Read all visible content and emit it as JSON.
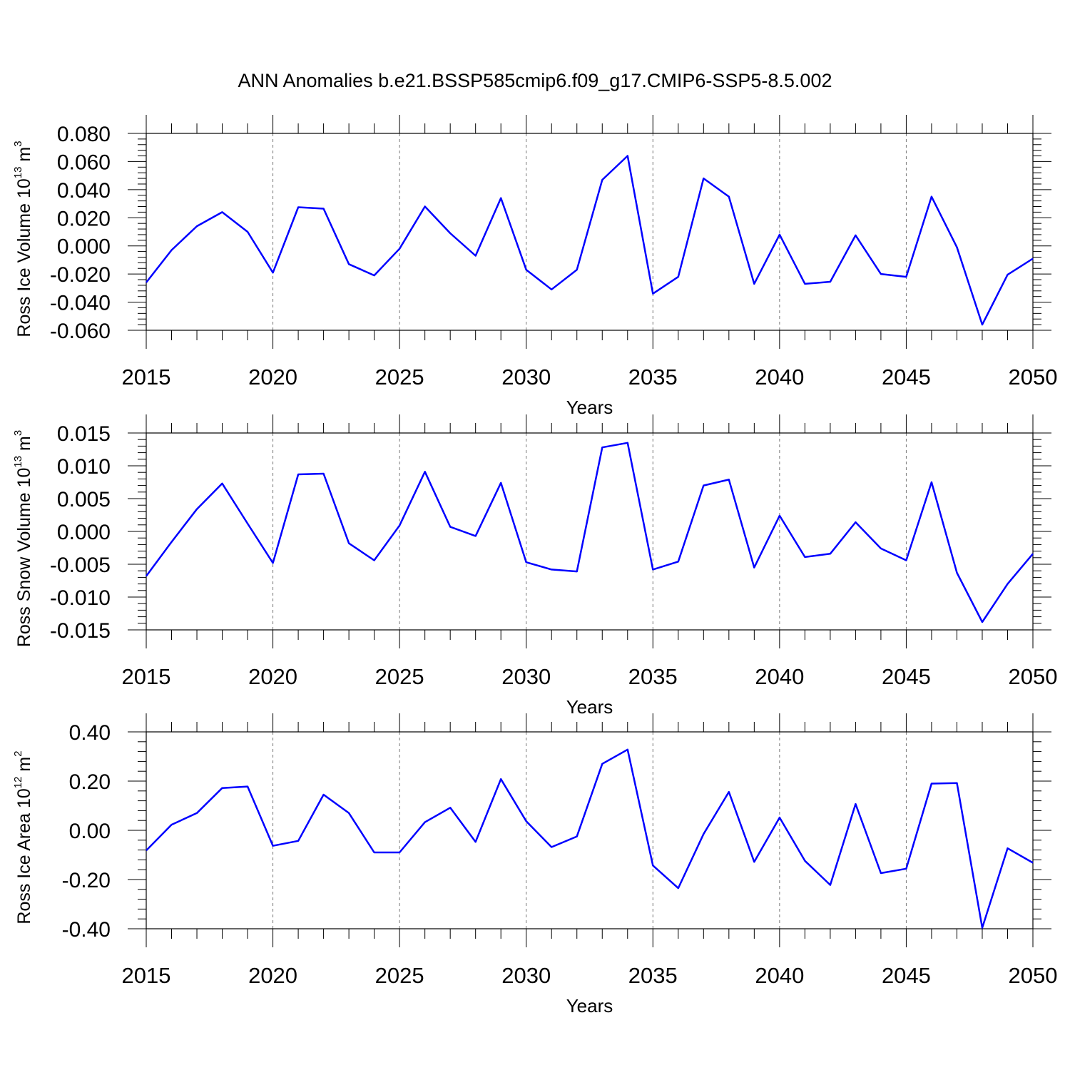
{
  "title": "ANN Anomalies b.e21.BSSP585cmip6.f09_g17.CMIP6-SSP5-8.5.002",
  "line_color": "#0000ff",
  "chart_data": [
    {
      "type": "line",
      "title": "",
      "xlabel": "Years",
      "ylabel": "Ross Ice Volume 10",
      "ylabel_exp": "13",
      "ylabel_unit": " m",
      "ylabel_unit_exp": "3",
      "xlim": [
        2015,
        2050
      ],
      "ylim": [
        -0.06,
        0.08
      ],
      "xticks": [
        2015,
        2020,
        2025,
        2030,
        2035,
        2040,
        2045,
        2050
      ],
      "xtick_labels": [
        "2015",
        "2020",
        "2025",
        "2030",
        "2035",
        "2040",
        "2045",
        "2050"
      ],
      "yticks": [
        -0.06,
        -0.04,
        -0.02,
        0.0,
        0.02,
        0.04,
        0.06,
        0.08
      ],
      "ytick_labels": [
        "-0.060",
        "-0.040",
        "-0.020",
        "0.000",
        "0.020",
        "0.040",
        "0.060",
        "0.080"
      ],
      "grid": "vertical dashed at major x ticks",
      "x": [
        2015,
        2016,
        2017,
        2018,
        2019,
        2020,
        2021,
        2022,
        2023,
        2024,
        2025,
        2026,
        2027,
        2028,
        2029,
        2030,
        2031,
        2032,
        2033,
        2034,
        2035,
        2036,
        2037,
        2038,
        2039,
        2040,
        2041,
        2042,
        2043,
        2044,
        2045,
        2046,
        2047,
        2048,
        2049,
        2050
      ],
      "y": [
        -0.026,
        -0.003,
        0.014,
        0.024,
        0.01,
        -0.019,
        0.0275,
        0.0265,
        -0.013,
        -0.021,
        -0.002,
        0.028,
        0.009,
        -0.007,
        0.034,
        -0.017,
        -0.031,
        -0.017,
        0.047,
        0.064,
        -0.034,
        -0.022,
        0.048,
        0.035,
        -0.027,
        0.008,
        -0.027,
        -0.0255,
        0.0075,
        -0.02,
        -0.022,
        0.035,
        -0.001,
        -0.056,
        -0.0205,
        -0.009
      ]
    },
    {
      "type": "line",
      "title": "",
      "xlabel": "Years",
      "ylabel": "Ross Snow Volume 10",
      "ylabel_exp": "13",
      "ylabel_unit": " m",
      "ylabel_unit_exp": "3",
      "xlim": [
        2015,
        2050
      ],
      "ylim": [
        -0.015,
        0.015
      ],
      "xticks": [
        2015,
        2020,
        2025,
        2030,
        2035,
        2040,
        2045,
        2050
      ],
      "xtick_labels": [
        "2015",
        "2020",
        "2025",
        "2030",
        "2035",
        "2040",
        "2045",
        "2050"
      ],
      "yticks": [
        -0.015,
        -0.01,
        -0.005,
        0.0,
        0.005,
        0.01,
        0.015
      ],
      "ytick_labels": [
        "-0.015",
        "-0.010",
        "-0.005",
        "0.000",
        "0.005",
        "0.010",
        "0.015"
      ],
      "grid": "vertical dashed at major x ticks",
      "x": [
        2015,
        2016,
        2017,
        2018,
        2019,
        2020,
        2021,
        2022,
        2023,
        2024,
        2025,
        2026,
        2027,
        2028,
        2029,
        2030,
        2031,
        2032,
        2033,
        2034,
        2035,
        2036,
        2037,
        2038,
        2039,
        2040,
        2041,
        2042,
        2043,
        2044,
        2045,
        2046,
        2047,
        2048,
        2049,
        2050
      ],
      "y": [
        -0.0068,
        -0.0016,
        0.0034,
        0.0073,
        0.0012,
        -0.0048,
        0.0087,
        0.0088,
        -0.0018,
        -0.0044,
        0.0009,
        0.0091,
        0.0007,
        -0.0007,
        0.0074,
        -0.0047,
        -0.0058,
        -0.0061,
        0.0128,
        0.0135,
        -0.0058,
        -0.0046,
        0.007,
        0.0079,
        -0.0055,
        0.0024,
        -0.0039,
        -0.0034,
        0.0014,
        -0.0026,
        -0.0044,
        0.0075,
        -0.0063,
        -0.0138,
        -0.008,
        -0.0034
      ]
    },
    {
      "type": "line",
      "title": "",
      "xlabel": "Years",
      "ylabel": "Ross Ice Area 10",
      "ylabel_exp": "12",
      "ylabel_unit": " m",
      "ylabel_unit_exp": "2",
      "xlim": [
        2015,
        2050
      ],
      "ylim": [
        -0.4,
        0.4
      ],
      "xticks": [
        2015,
        2020,
        2025,
        2030,
        2035,
        2040,
        2045,
        2050
      ],
      "xtick_labels": [
        "2015",
        "2020",
        "2025",
        "2030",
        "2035",
        "2040",
        "2045",
        "2050"
      ],
      "yticks": [
        -0.4,
        -0.2,
        0.0,
        0.2,
        0.4
      ],
      "ytick_labels": [
        "-0.40",
        "-0.20",
        "0.00",
        "0.20",
        "0.40"
      ],
      "grid": "vertical dashed at major x ticks",
      "x": [
        2015,
        2016,
        2017,
        2018,
        2019,
        2020,
        2021,
        2022,
        2023,
        2024,
        2025,
        2026,
        2027,
        2028,
        2029,
        2030,
        2031,
        2032,
        2033,
        2034,
        2035,
        2036,
        2037,
        2038,
        2039,
        2040,
        2041,
        2042,
        2043,
        2044,
        2045,
        2046,
        2047,
        2048,
        2049,
        2050
      ],
      "y": [
        -0.082,
        0.023,
        0.07,
        0.172,
        0.178,
        -0.063,
        -0.043,
        0.145,
        0.07,
        -0.09,
        -0.09,
        0.033,
        0.092,
        -0.047,
        0.208,
        0.037,
        -0.068,
        -0.025,
        0.27,
        0.328,
        -0.143,
        -0.235,
        -0.015,
        0.156,
        -0.128,
        0.052,
        -0.124,
        -0.222,
        0.107,
        -0.174,
        -0.156,
        0.19,
        0.192,
        -0.396,
        -0.073,
        -0.132
      ]
    }
  ]
}
